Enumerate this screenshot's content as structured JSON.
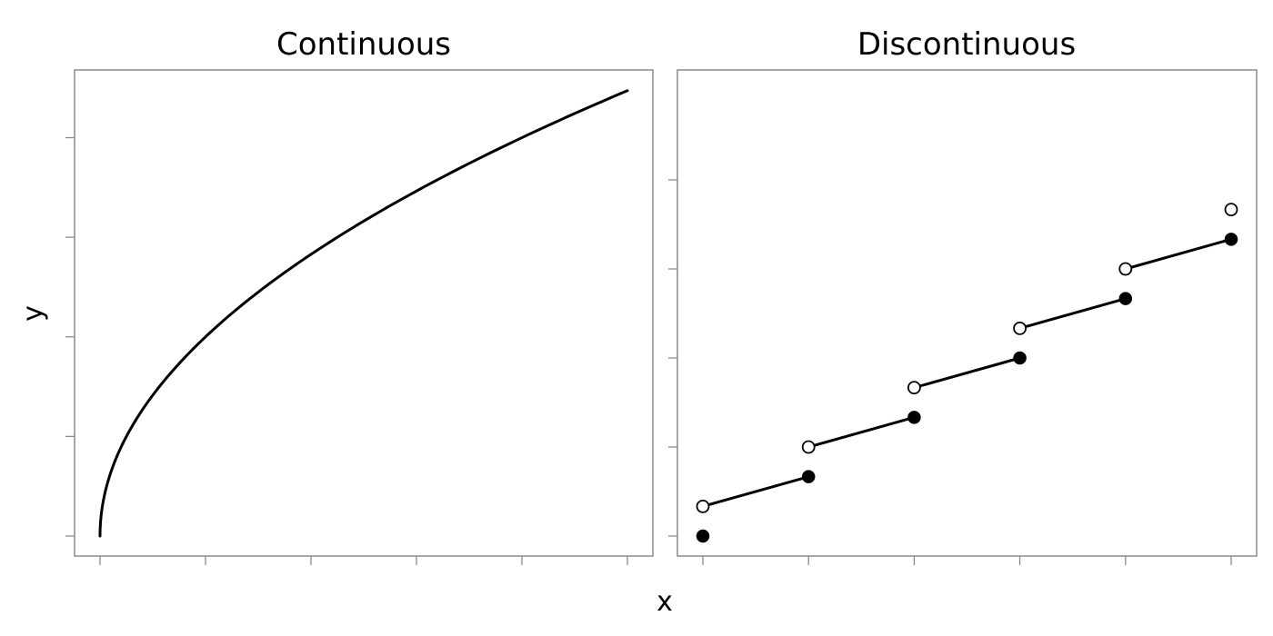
{
  "xlabel": "x",
  "ylabel": "y",
  "chart_data": [
    {
      "type": "line",
      "title": "Continuous",
      "xlim": [
        0,
        5
      ],
      "ylim": [
        0,
        4.47
      ],
      "xticks": [
        0,
        1,
        2,
        3,
        4,
        5
      ],
      "yticks": [
        0,
        1,
        2,
        3,
        4
      ],
      "series": [
        {
          "function": "y = 2*sqrt(x)",
          "x": [
            0,
            0.05,
            0.1,
            0.25,
            0.5,
            1,
            1.5,
            2,
            2.5,
            3,
            3.5,
            4,
            4.5,
            5
          ],
          "y": [
            0,
            0.447,
            0.632,
            1.0,
            1.414,
            2.0,
            2.449,
            2.828,
            3.162,
            3.464,
            3.742,
            4.0,
            4.243,
            4.472
          ]
        }
      ],
      "grid": false,
      "colors": {
        "line": "#000000",
        "frame": "#8c8c8c"
      }
    },
    {
      "type": "line",
      "title": "Discontinuous",
      "xlim": [
        0,
        5
      ],
      "ylim": [
        0,
        5
      ],
      "xticks": [
        0,
        1,
        2,
        3,
        4,
        5
      ],
      "yticks": [
        0,
        1,
        2,
        3,
        4
      ],
      "segments": [
        {
          "x0": 0,
          "y0": 0.333,
          "x1": 1,
          "y1": 0.667
        },
        {
          "x0": 1,
          "y0": 1.0,
          "x1": 2,
          "y1": 1.333
        },
        {
          "x0": 2,
          "y0": 1.667,
          "x1": 3,
          "y1": 2.0
        },
        {
          "x0": 3,
          "y0": 2.333,
          "x1": 4,
          "y1": 2.667
        },
        {
          "x0": 4,
          "y0": 3.0,
          "x1": 5,
          "y1": 3.333
        }
      ],
      "closed_points": [
        [
          0,
          0
        ],
        [
          1,
          0.667
        ],
        [
          2,
          1.333
        ],
        [
          3,
          2.0
        ],
        [
          4,
          2.667
        ],
        [
          5,
          3.333
        ]
      ],
      "open_points": [
        [
          0,
          0.333
        ],
        [
          1,
          1.0
        ],
        [
          2,
          1.667
        ],
        [
          3,
          2.333
        ],
        [
          4,
          3.0
        ],
        [
          5,
          3.667
        ]
      ],
      "grid": false,
      "colors": {
        "line": "#000000",
        "frame": "#8c8c8c",
        "open_fill": "#ffffff",
        "closed_fill": "#000000"
      }
    }
  ]
}
